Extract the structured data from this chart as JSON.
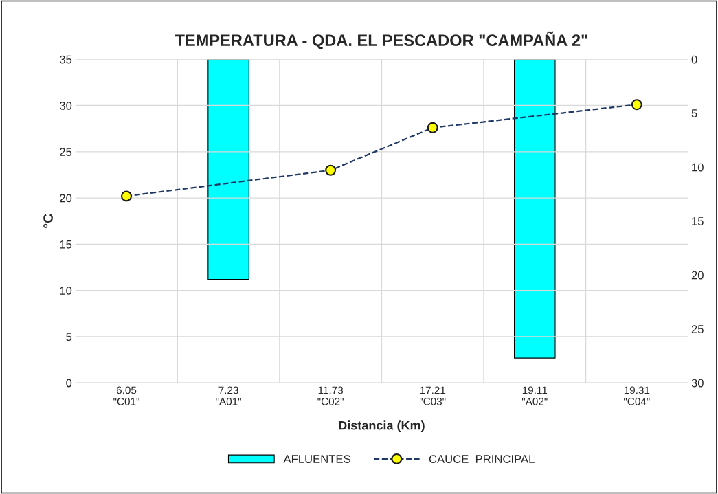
{
  "chart_data": {
    "type": "line",
    "title": "TEMPERATURA - QDA. EL PESCADOR \"CAMPAÑA 2\"",
    "xlabel": "Distancia (Km)",
    "ylabel": "°C",
    "categories": [
      "6.05\n\"C01\"",
      "7.23\n\"A01\"",
      "11.73\n\"C02\"",
      "17.21\n\"C03\"",
      "19.11\n\"A02\"",
      "19.31\n\"C04\""
    ],
    "series": [
      {
        "name": "AFLUENTES",
        "type": "bar",
        "axis": "y2",
        "color": "#00ffff",
        "values": [
          null,
          20.4,
          null,
          null,
          27.7,
          null
        ]
      },
      {
        "name": "CAUCE  PRINCIPAL",
        "color": "#1f3864",
        "marker": "circle",
        "line_style": "dashed",
        "values": [
          20.2,
          null,
          23.0,
          27.6,
          null,
          30.1
        ]
      }
    ],
    "ylim": [
      0,
      35
    ],
    "yticks": [
      0,
      5,
      10,
      15,
      20,
      25,
      30,
      35
    ],
    "y2lim": [
      30,
      0
    ],
    "y2ticks": [
      0,
      5,
      10,
      15,
      20,
      25,
      30
    ],
    "grid": true,
    "legend": "bottom"
  }
}
